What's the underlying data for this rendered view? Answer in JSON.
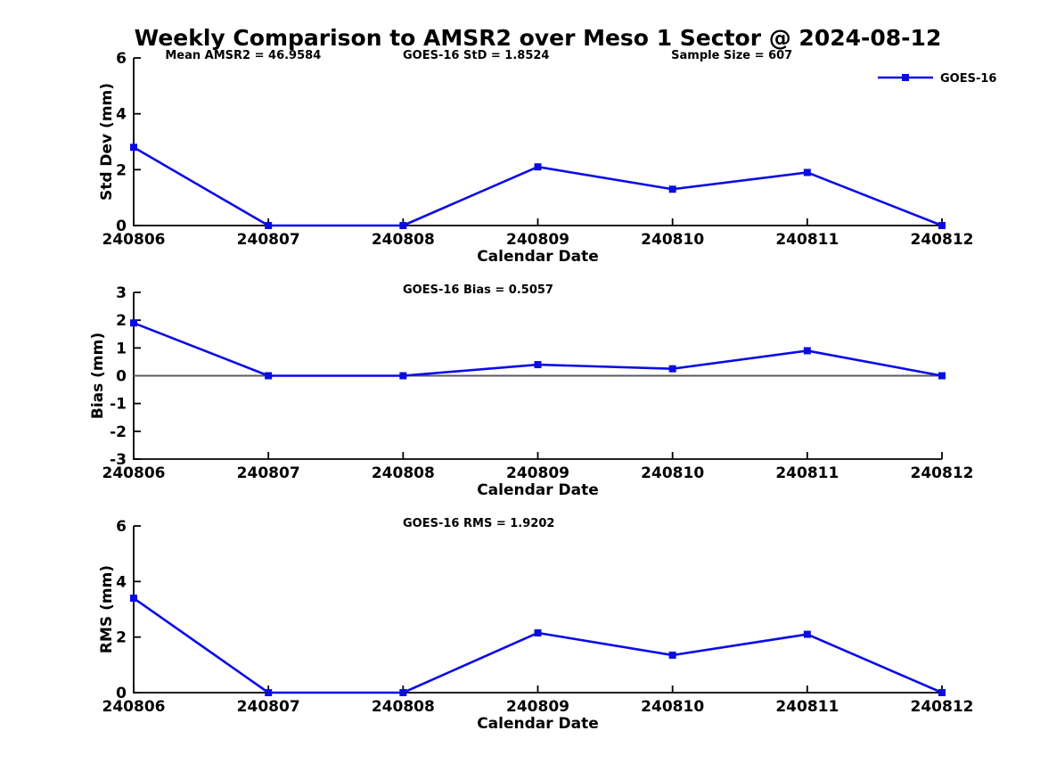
{
  "figure": {
    "title": "Weekly Comparison to AMSR2 over Meso 1 Sector @ 2024-08-12",
    "background": "#ffffff"
  },
  "legend": {
    "label": "GOES-16"
  },
  "colors": {
    "series": "#0b0be6",
    "axis": "#000000",
    "text": "#000000",
    "zero_line": "#5a5a5a"
  },
  "chart_data": [
    {
      "type": "line",
      "panel": "std-dev",
      "annotations": [
        {
          "text": "Mean AMSR2 = 46.9584",
          "xfrac": 0.039
        },
        {
          "text": "GOES-16 StD = 1.8524",
          "xfrac": 0.333
        },
        {
          "text": "Sample Size = 607",
          "xfrac": 0.665
        }
      ],
      "categories": [
        "240806",
        "240807",
        "240808",
        "240809",
        "240810",
        "240811",
        "240812"
      ],
      "series": [
        {
          "name": "GOES-16",
          "values": [
            2.8,
            0,
            0,
            2.1,
            1.3,
            1.9,
            0
          ]
        }
      ],
      "xlabel": "Calendar Date",
      "ylabel": "Std Dev (mm)",
      "ylim": [
        0,
        6
      ],
      "yticks": [
        0,
        2,
        4,
        6
      ],
      "zero_line": false,
      "show_legend": true,
      "grid": false,
      "legend_position": "top-right"
    },
    {
      "type": "line",
      "panel": "bias",
      "annotations": [
        {
          "text": "GOES-16 Bias  = 0.5057",
          "xfrac": 0.333
        }
      ],
      "categories": [
        "240806",
        "240807",
        "240808",
        "240809",
        "240810",
        "240811",
        "240812"
      ],
      "series": [
        {
          "name": "GOES-16",
          "values": [
            1.9,
            0,
            0,
            0.4,
            0.25,
            0.9,
            0
          ]
        }
      ],
      "xlabel": "Calendar Date",
      "ylabel": "Bias (mm)",
      "ylim": [
        -3,
        3
      ],
      "yticks": [
        -3,
        -2,
        -1,
        0,
        1,
        2,
        3
      ],
      "zero_line": true,
      "show_legend": false,
      "grid": false
    },
    {
      "type": "line",
      "panel": "rms",
      "annotations": [
        {
          "text": "GOES-16 RMS = 1.9202",
          "xfrac": 0.333
        }
      ],
      "categories": [
        "240806",
        "240807",
        "240808",
        "240809",
        "240810",
        "240811",
        "240812"
      ],
      "series": [
        {
          "name": "GOES-16",
          "values": [
            3.4,
            0,
            0,
            2.15,
            1.35,
            2.1,
            0
          ]
        }
      ],
      "xlabel": "Calendar Date",
      "ylabel": "RMS (mm)",
      "ylim": [
        0,
        6
      ],
      "yticks": [
        0,
        2,
        4,
        6
      ],
      "zero_line": false,
      "show_legend": false,
      "grid": false
    }
  ]
}
